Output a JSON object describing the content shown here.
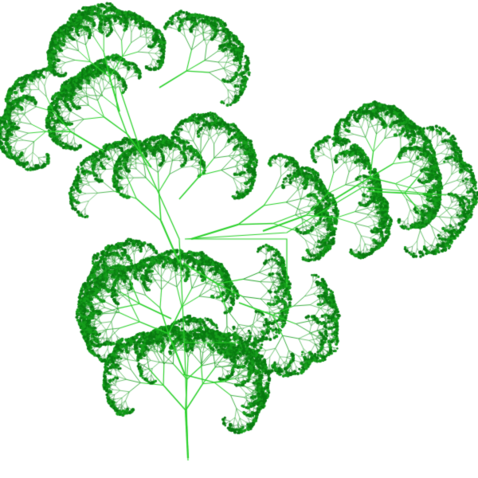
{
  "image": {
    "subject": "fractal-plant",
    "background": "#ffffff",
    "colors": {
      "dark": "#0a7a12",
      "mid": "#169e1c",
      "light": "#2bd12b"
    }
  }
}
